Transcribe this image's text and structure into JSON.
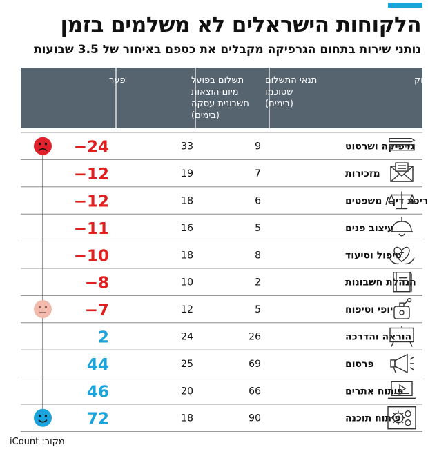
{
  "title": "הלקוחות הישראלים לא משלמים בזמן",
  "subtitle": "נותני שירות בתחום הגרפיקה מקבלים את כספם באיחור של 3.5 שבועות",
  "source": "מקור: iCount",
  "colors": {
    "header_bg": "#566470",
    "negative": "#e02020",
    "positive": "#1ba3dc",
    "accent": "#1ba3dc",
    "sad_face": "#e0202a",
    "neutral_face": "#f2b9ad",
    "happy_face": "#1ba3dc"
  },
  "chart_data": {
    "type": "table",
    "columns": [
      "תחום עיסוק",
      "תנאי התשלום שסוכמו (בימים)",
      "תשלום בפועל מיום הוצאות חשבונית עסקה (בימים)",
      "פער"
    ],
    "column_lines": [
      [
        "תחום עיסוק"
      ],
      [
        "תנאי התשלום",
        "שסוכמו",
        "(בימים)"
      ],
      [
        "תשלום בפועל",
        "מיום הוצאות",
        "חשבונית עסקה",
        "(בימים)"
      ],
      [
        "פער"
      ]
    ],
    "rows": [
      {
        "field": "גרפיקה ושרטוט",
        "agreed": 9,
        "actual": 33,
        "gap": "-24",
        "icon": "ruler-pencil-icon"
      },
      {
        "field": "מזכירות",
        "agreed": 7,
        "actual": 19,
        "gap": "-12",
        "icon": "envelope-icon"
      },
      {
        "field": "עריכת דין / משפטים",
        "agreed": 6,
        "actual": 18,
        "gap": "-12",
        "icon": "scales-icon"
      },
      {
        "field": "עיצוב פנים",
        "agreed": 5,
        "actual": 16,
        "gap": "-11",
        "icon": "pendant-lamp-icon"
      },
      {
        "field": "טיפול וסיעוד",
        "agreed": 8,
        "actual": 18,
        "gap": "-10",
        "icon": "heart-hands-icon"
      },
      {
        "field": "הנהלת חשבונות",
        "agreed": 2,
        "actual": 10,
        "gap": "-8",
        "icon": "book-icon"
      },
      {
        "field": "יופי וטיפוח",
        "agreed": 5,
        "actual": 12,
        "gap": "-7",
        "icon": "perfume-icon"
      },
      {
        "field": "הוראה והדרכה",
        "agreed": 26,
        "actual": 24,
        "gap": "2",
        "icon": "board-icon"
      },
      {
        "field": "פרסום",
        "agreed": 69,
        "actual": 25,
        "gap": "44",
        "icon": "megaphone-icon"
      },
      {
        "field": "פיתוח אתרים",
        "agreed": 66,
        "actual": 20,
        "gap": "46",
        "icon": "laptop-icon"
      },
      {
        "field": "פיתוח תוכנה",
        "agreed": 90,
        "actual": 18,
        "gap": "72",
        "icon": "gears-icon"
      }
    ],
    "faces": [
      {
        "row": 0,
        "mood": "sad",
        "icon": "sad-face-icon"
      },
      {
        "row": 6,
        "mood": "neutral",
        "icon": "neutral-face-icon"
      },
      {
        "row": 10,
        "mood": "happy",
        "icon": "happy-face-icon"
      }
    ]
  }
}
